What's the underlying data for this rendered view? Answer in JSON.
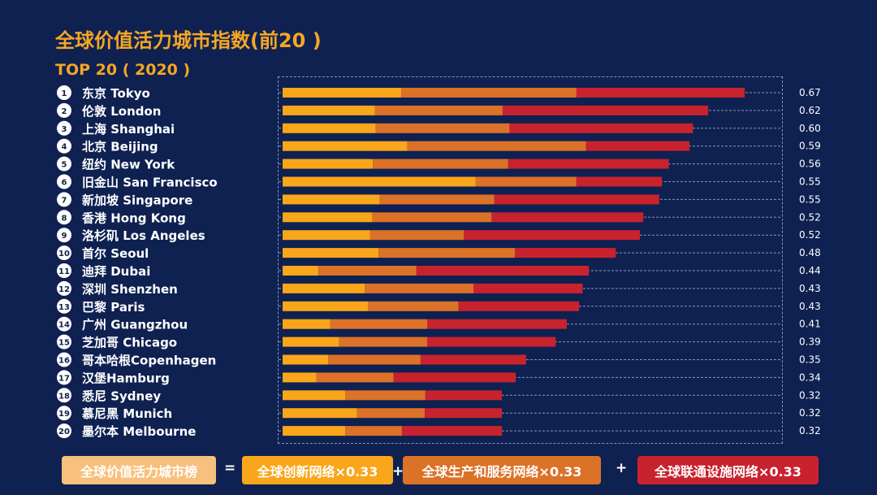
{
  "header": {
    "title": "全球价值活力城市指数(前20 )",
    "subtitle": "TOP 20 ( 2020 )"
  },
  "chart_data": {
    "type": "bar",
    "orientation": "horizontal",
    "stacked": true,
    "categories": [
      "东京 Tokyo",
      "伦敦 London",
      "上海 Shanghai",
      "北京 Beijing",
      "纽约 New York",
      "旧金山 San Francisco",
      "新加坡 Singapore",
      "香港 Hong Kong",
      "洛杉矶 Los Angeles",
      "首尔 Seoul",
      "迪拜 Dubai",
      "深圳 Shenzhen",
      "巴黎 Paris",
      "广州 Guangzhou",
      "芝加哥 Chicago",
      "哥本哈根Copenhagen",
      "汉堡Hamburg",
      "悉尼 Sydney",
      "慕尼黑 Munich",
      "墨尔本 Melbourne"
    ],
    "ranks": [
      "1",
      "2",
      "3",
      "4",
      "5",
      "6",
      "7",
      "8",
      "9",
      "10",
      "11",
      "12",
      "13",
      "14",
      "15",
      "16",
      "17",
      "18",
      "19",
      "20"
    ],
    "totals": [
      "0.67",
      "0.62",
      "0.60",
      "0.59",
      "0.56",
      "0.55",
      "0.55",
      "0.52",
      "0.52",
      "0.48",
      "0.44",
      "0.43",
      "0.43",
      "0.41",
      "0.39",
      "0.35",
      "0.34",
      "0.32",
      "0.32",
      "0.32"
    ],
    "series": [
      {
        "color": "#f9a61a",
        "values": [
          0.172,
          0.134,
          0.135,
          0.181,
          0.131,
          0.28,
          0.141,
          0.13,
          0.127,
          0.139,
          0.052,
          0.119,
          0.124,
          0.069,
          0.082,
          0.066,
          0.049,
          0.091,
          0.108,
          0.091
        ]
      },
      {
        "color": "#dc7128",
        "values": [
          0.254,
          0.185,
          0.194,
          0.259,
          0.196,
          0.146,
          0.166,
          0.173,
          0.136,
          0.198,
          0.142,
          0.158,
          0.131,
          0.141,
          0.128,
          0.134,
          0.112,
          0.116,
          0.098,
          0.082
        ]
      },
      {
        "color": "#c8222e",
        "values": [
          0.244,
          0.298,
          0.266,
          0.15,
          0.233,
          0.124,
          0.239,
          0.22,
          0.255,
          0.146,
          0.25,
          0.158,
          0.175,
          0.202,
          0.186,
          0.153,
          0.177,
          0.111,
          0.112,
          0.145
        ]
      }
    ],
    "xlim": [
      0,
      0.85
    ],
    "grid": "dashed horizontal row lines"
  },
  "formula": {
    "result": "全球价值活力城市榜",
    "equals": "=",
    "term1": "全球创新网络×0.33",
    "plus1": "+",
    "term2": "全球生产和服务网络×0.33",
    "plus2": "+",
    "term3": "全球联通设施网络×0.33",
    "colors": {
      "result": "#f7c07d",
      "term1": "#f9a61a",
      "term2": "#dc7128",
      "term3": "#c8222e"
    }
  }
}
